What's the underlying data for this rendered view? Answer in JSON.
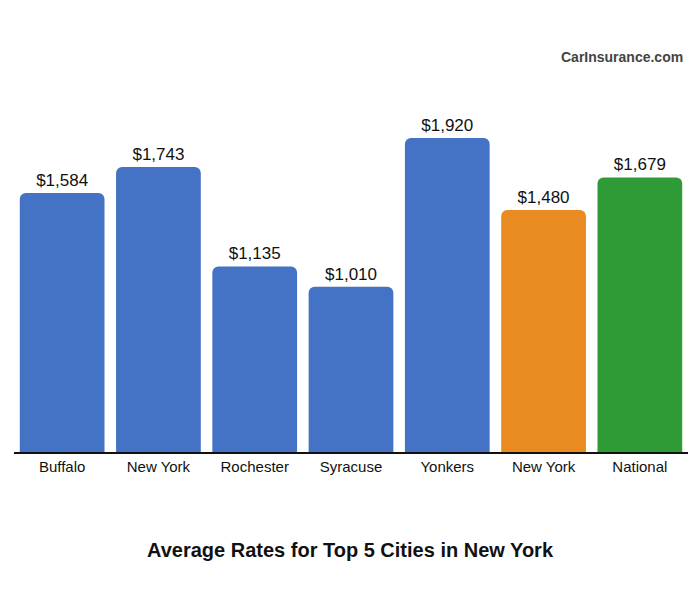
{
  "chart_data": {
    "type": "bar",
    "title": "Average Rates for Top 5 Cities in New York",
    "logo": "CarInsurance.com",
    "categories": [
      "Buffalo",
      "New York",
      "Rochester",
      "Syracuse",
      "Yonkers",
      "New York",
      "National"
    ],
    "values": [
      1584,
      1743,
      1135,
      1010,
      1920,
      1480,
      1679
    ],
    "value_labels": [
      "$1,584",
      "$1,743",
      "$1,135",
      "$1,010",
      "$1,920",
      "$1,480",
      "$1,679"
    ],
    "colors": [
      "#4472c4",
      "#4472c4",
      "#4472c4",
      "#4472c4",
      "#4472c4",
      "#e88b21",
      "#2e9b36"
    ],
    "ylim": [
      0,
      2000
    ],
    "grid": false,
    "data_labels": true,
    "tick_labels": "x"
  }
}
